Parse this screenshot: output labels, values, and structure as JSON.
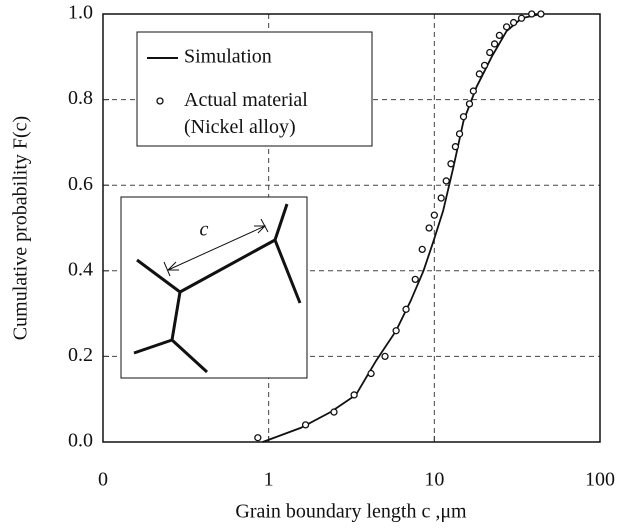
{
  "chart_data": {
    "type": "line",
    "xlabel": "Grain boundary length c ,μm",
    "ylabel": "Cumulative probability  F(c)",
    "inset_label": "c",
    "xscale": "log",
    "xlim": [
      0.1,
      100
    ],
    "xticks": [
      {
        "value": 0.1,
        "label": "0"
      },
      1,
      10,
      100
    ],
    "ylim": [
      0,
      1
    ],
    "yticks": [
      {
        "value": 0,
        "label": "0.0"
      },
      0.2,
      0.4,
      0.6,
      0.8,
      {
        "value": 1,
        "label": "1.0"
      }
    ],
    "grid": true,
    "legend": "upper left",
    "series": [
      {
        "name": "Simulation",
        "color": "#111111",
        "style": "line",
        "x": [
          0.92,
          1.56,
          2.37,
          3.36,
          4.45,
          5.88,
          7.2,
          8.6,
          9.9,
          11.3,
          13.0,
          15.0,
          18.0,
          22.2,
          27.3,
          33.6,
          44
        ],
        "values": [
          0,
          0.033,
          0.07,
          0.11,
          0.19,
          0.26,
          0.33,
          0.4,
          0.47,
          0.54,
          0.64,
          0.75,
          0.83,
          0.9,
          0.96,
          0.99,
          1.0
        ]
      },
      {
        "name": "Actual material\n(Nickel alloy)",
        "color": "#111111",
        "style": "marker",
        "x": [
          0.86,
          1.67,
          2.48,
          3.28,
          4.15,
          5.04,
          5.88,
          6.75,
          7.67,
          8.45,
          9.3,
          10.0,
          11.0,
          11.8,
          12.6,
          13.4,
          14.2,
          15.0,
          16.3,
          17.2,
          18.7,
          20.1,
          21.6,
          23.1,
          24.7,
          27.3,
          30.1,
          33.6,
          38.7,
          44
        ],
        "values": [
          0.01,
          0.04,
          0.07,
          0.11,
          0.16,
          0.2,
          0.26,
          0.31,
          0.38,
          0.45,
          0.5,
          0.53,
          0.57,
          0.61,
          0.65,
          0.69,
          0.72,
          0.76,
          0.79,
          0.82,
          0.86,
          0.88,
          0.91,
          0.93,
          0.95,
          0.97,
          0.98,
          0.99,
          1.0,
          1.0
        ]
      }
    ]
  }
}
